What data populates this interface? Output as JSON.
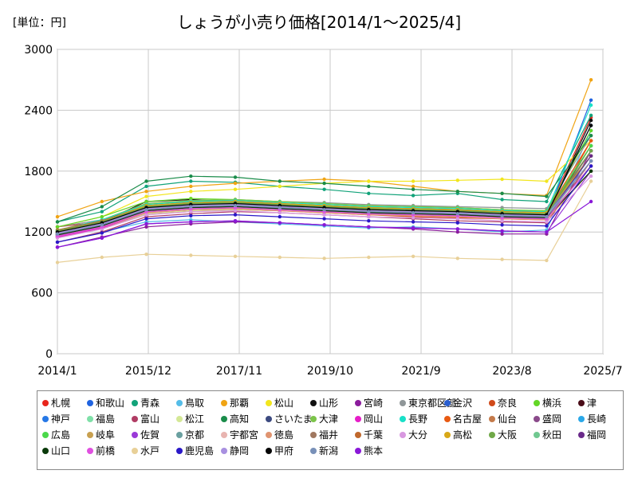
{
  "unit_label": "[単位：円]",
  "chart_title": "しょうが小売り価格[2014/1～2025/4]",
  "chart_data": {
    "type": "line",
    "title": "しょうが小売り価格[2014/1～2025/4]",
    "unit": "[単位：円]",
    "xlabel": "",
    "ylabel": "",
    "x_range": [
      "2014/1",
      "2025/7"
    ],
    "x_ticks": [
      "2014/1",
      "2015/12",
      "2017/11",
      "2019/10",
      "2021/9",
      "2023/8",
      "2025/7"
    ],
    "ylim": [
      0,
      3000
    ],
    "y_ticks": [
      0,
      600,
      1200,
      1800,
      2400,
      3000
    ],
    "grid": true,
    "legend_position": "bottom",
    "x_start": "2014/1",
    "x_end": "2025/4",
    "series": [
      {
        "name": "札幌",
        "color": "#e8251c",
        "values": [
          1250,
          1300,
          1450,
          1500,
          1520,
          1480,
          1450,
          1430,
          1400,
          1420,
          1410,
          1390,
          2330
        ]
      },
      {
        "name": "和歌山",
        "color": "#1f63e0",
        "values": [
          1150,
          1250,
          1400,
          1420,
          1450,
          1430,
          1420,
          1410,
          1380,
          1360,
          1340,
          1350,
          2500
        ]
      },
      {
        "name": "青森",
        "color": "#12a37a",
        "values": [
          1300,
          1400,
          1650,
          1700,
          1690,
          1650,
          1620,
          1580,
          1560,
          1580,
          1520,
          1500,
          2350
        ]
      },
      {
        "name": "鳥取",
        "color": "#55bde8",
        "values": [
          1100,
          1200,
          1300,
          1320,
          1300,
          1280,
          1260,
          1240,
          1250,
          1230,
          1200,
          1220,
          2200
        ]
      },
      {
        "name": "那覇",
        "color": "#f0a414",
        "values": [
          1350,
          1500,
          1600,
          1650,
          1680,
          1700,
          1720,
          1700,
          1650,
          1600,
          1580,
          1560,
          2700
        ]
      },
      {
        "name": "松山",
        "color": "#f2e61e",
        "values": [
          1250,
          1350,
          1550,
          1600,
          1620,
          1650,
          1680,
          1700,
          1700,
          1710,
          1720,
          1700,
          2100
        ]
      },
      {
        "name": "山形",
        "color": "#111111",
        "values": [
          1200,
          1300,
          1500,
          1520,
          1500,
          1480,
          1450,
          1420,
          1400,
          1380,
          1370,
          1360,
          2300
        ]
      },
      {
        "name": "宮崎",
        "color": "#8b1c9c",
        "values": [
          1050,
          1150,
          1250,
          1280,
          1300,
          1290,
          1270,
          1250,
          1230,
          1200,
          1180,
          1180,
          2000
        ]
      },
      {
        "name": "東京都区部",
        "color": "#8f9698",
        "values": [
          1250,
          1320,
          1480,
          1500,
          1510,
          1500,
          1490,
          1470,
          1460,
          1450,
          1440,
          1430,
          2150
        ]
      },
      {
        "name": "金沢",
        "color": "#2a5fd0",
        "values": [
          1200,
          1280,
          1400,
          1420,
          1440,
          1420,
          1410,
          1400,
          1390,
          1380,
          1370,
          1360,
          2250
        ]
      },
      {
        "name": "奈良",
        "color": "#d04a1a",
        "values": [
          1150,
          1230,
          1380,
          1400,
          1420,
          1410,
          1390,
          1370,
          1350,
          1340,
          1330,
          1320,
          2100
        ]
      },
      {
        "name": "横浜",
        "color": "#63d626",
        "values": [
          1250,
          1350,
          1500,
          1530,
          1520,
          1500,
          1480,
          1460,
          1450,
          1440,
          1420,
          1410,
          2200
        ]
      },
      {
        "name": "津",
        "color": "#4a0d18",
        "values": [
          1200,
          1290,
          1420,
          1450,
          1460,
          1440,
          1420,
          1400,
          1390,
          1380,
          1370,
          1360,
          2050
        ]
      },
      {
        "name": "神戸",
        "color": "#2678e6",
        "values": [
          1180,
          1260,
          1400,
          1430,
          1450,
          1430,
          1420,
          1400,
          1390,
          1370,
          1360,
          1350,
          2000
        ]
      },
      {
        "name": "福島",
        "color": "#7fe0a8",
        "values": [
          1220,
          1300,
          1450,
          1480,
          1490,
          1480,
          1460,
          1440,
          1430,
          1420,
          1410,
          1400,
          1950
        ]
      },
      {
        "name": "富山",
        "color": "#b03c64",
        "values": [
          1100,
          1200,
          1350,
          1380,
          1400,
          1390,
          1370,
          1350,
          1330,
          1310,
          1300,
          1290,
          1900
        ]
      },
      {
        "name": "松江",
        "color": "#d4e896",
        "values": [
          1150,
          1240,
          1380,
          1410,
          1420,
          1410,
          1400,
          1380,
          1370,
          1360,
          1350,
          1340,
          1850
        ]
      },
      {
        "name": "高知",
        "color": "#1a8c4a",
        "values": [
          1300,
          1450,
          1700,
          1750,
          1740,
          1700,
          1680,
          1650,
          1620,
          1600,
          1580,
          1550,
          2150
        ]
      },
      {
        "name": "さいたま",
        "color": "#3c4a80",
        "values": [
          1200,
          1300,
          1450,
          1480,
          1490,
          1470,
          1450,
          1430,
          1420,
          1410,
          1400,
          1390,
          2000
        ]
      },
      {
        "name": "大津",
        "color": "#7cc44a",
        "values": [
          1200,
          1320,
          1480,
          1510,
          1520,
          1500,
          1480,
          1460,
          1450,
          1440,
          1420,
          1400,
          2050
        ]
      },
      {
        "name": "岡山",
        "color": "#e61ec8",
        "values": [
          1150,
          1240,
          1390,
          1420,
          1430,
          1410,
          1400,
          1380,
          1370,
          1360,
          1340,
          1330,
          1950
        ]
      },
      {
        "name": "長野",
        "color": "#18e0c8",
        "values": [
          1220,
          1320,
          1470,
          1500,
          1510,
          1490,
          1470,
          1450,
          1440,
          1430,
          1410,
          1400,
          2450
        ]
      },
      {
        "name": "名古屋",
        "color": "#e85a12",
        "values": [
          1200,
          1300,
          1460,
          1490,
          1500,
          1480,
          1460,
          1440,
          1430,
          1420,
          1400,
          1390,
          2100
        ]
      },
      {
        "name": "仙台",
        "color": "#c47a4a",
        "values": [
          1180,
          1270,
          1420,
          1450,
          1460,
          1440,
          1420,
          1400,
          1390,
          1380,
          1360,
          1350,
          1900
        ]
      },
      {
        "name": "盛岡",
        "color": "#8a4a8a",
        "values": [
          1170,
          1260,
          1410,
          1440,
          1450,
          1430,
          1410,
          1390,
          1380,
          1370,
          1350,
          1340,
          2000
        ]
      },
      {
        "name": "長崎",
        "color": "#2aa8e8",
        "values": [
          1160,
          1250,
          1400,
          1430,
          1440,
          1420,
          1400,
          1380,
          1370,
          1360,
          1340,
          1330,
          1950
        ]
      },
      {
        "name": "広島",
        "color": "#4ad84a",
        "values": [
          1210,
          1300,
          1450,
          1480,
          1490,
          1470,
          1450,
          1430,
          1420,
          1410,
          1390,
          1380,
          2050
        ]
      },
      {
        "name": "岐阜",
        "color": "#c8a050",
        "values": [
          1190,
          1280,
          1430,
          1460,
          1470,
          1450,
          1430,
          1410,
          1400,
          1390,
          1370,
          1360,
          1900
        ]
      },
      {
        "name": "佐賀",
        "color": "#9a3ad8",
        "values": [
          1050,
          1140,
          1280,
          1300,
          1310,
          1290,
          1270,
          1250,
          1240,
          1230,
          1210,
          1200,
          1800
        ]
      },
      {
        "name": "京都",
        "color": "#6aa0a0",
        "values": [
          1200,
          1290,
          1440,
          1470,
          1480,
          1460,
          1440,
          1420,
          1410,
          1400,
          1380,
          1370,
          1950
        ]
      },
      {
        "name": "宇都宮",
        "color": "#e8b4b0",
        "values": [
          1170,
          1260,
          1400,
          1430,
          1440,
          1420,
          1400,
          1380,
          1370,
          1360,
          1340,
          1330,
          1850
        ]
      },
      {
        "name": "徳島",
        "color": "#e09470",
        "values": [
          1160,
          1250,
          1390,
          1420,
          1430,
          1410,
          1390,
          1370,
          1360,
          1350,
          1330,
          1320,
          1800
        ]
      },
      {
        "name": "福井",
        "color": "#a07860",
        "values": [
          1180,
          1270,
          1410,
          1440,
          1450,
          1430,
          1410,
          1390,
          1380,
          1370,
          1350,
          1340,
          1850
        ]
      },
      {
        "name": "千葉",
        "color": "#c0682c",
        "values": [
          1220,
          1310,
          1460,
          1490,
          1500,
          1480,
          1460,
          1440,
          1430,
          1420,
          1400,
          1390,
          2000
        ]
      },
      {
        "name": "大分",
        "color": "#d898e0",
        "values": [
          1140,
          1230,
          1370,
          1400,
          1410,
          1390,
          1370,
          1350,
          1340,
          1330,
          1310,
          1300,
          1750
        ]
      },
      {
        "name": "高松",
        "color": "#d8a818",
        "values": [
          1200,
          1300,
          1460,
          1490,
          1500,
          1480,
          1460,
          1440,
          1430,
          1420,
          1400,
          1390,
          1950
        ]
      },
      {
        "name": "大阪",
        "color": "#70a848",
        "values": [
          1210,
          1300,
          1450,
          1480,
          1490,
          1470,
          1450,
          1430,
          1420,
          1410,
          1390,
          1380,
          2000
        ]
      },
      {
        "name": "秋田",
        "color": "#70c890",
        "values": [
          1190,
          1280,
          1430,
          1460,
          1470,
          1450,
          1430,
          1410,
          1400,
          1390,
          1370,
          1360,
          1900
        ]
      },
      {
        "name": "福岡",
        "color": "#6a2a8a",
        "values": [
          1180,
          1270,
          1420,
          1450,
          1460,
          1440,
          1420,
          1400,
          1390,
          1380,
          1360,
          1350,
          1950
        ]
      },
      {
        "name": "山口",
        "color": "#0a3a0a",
        "values": [
          1170,
          1260,
          1410,
          1440,
          1450,
          1430,
          1410,
          1390,
          1380,
          1370,
          1350,
          1340,
          1800
        ]
      },
      {
        "name": "前橋",
        "color": "#e050e0",
        "values": [
          1160,
          1250,
          1400,
          1430,
          1440,
          1420,
          1400,
          1380,
          1370,
          1360,
          1340,
          1330,
          1850
        ]
      },
      {
        "name": "水戸",
        "color": "#e8d098",
        "values": [
          900,
          950,
          980,
          970,
          960,
          950,
          940,
          950,
          960,
          940,
          930,
          920,
          1700
        ]
      },
      {
        "name": "鹿児島",
        "color": "#2a18c8",
        "values": [
          1100,
          1190,
          1330,
          1360,
          1370,
          1350,
          1330,
          1310,
          1300,
          1290,
          1270,
          1260,
          1850
        ]
      },
      {
        "name": "静岡",
        "color": "#a890e0",
        "values": [
          1190,
          1280,
          1430,
          1460,
          1470,
          1450,
          1430,
          1410,
          1400,
          1390,
          1370,
          1360,
          1900
        ]
      },
      {
        "name": "甲府",
        "color": "#050505",
        "values": [
          1200,
          1290,
          1440,
          1470,
          1480,
          1460,
          1440,
          1420,
          1410,
          1400,
          1380,
          1370,
          2250
        ]
      },
      {
        "name": "新潟",
        "color": "#7890b8",
        "values": [
          1180,
          1270,
          1420,
          1450,
          1460,
          1440,
          1420,
          1400,
          1390,
          1380,
          1360,
          1350,
          1900
        ]
      },
      {
        "name": "熊本",
        "color": "#8a18d8",
        "values": [
          1050,
          1140,
          1280,
          1300,
          1310,
          1290,
          1270,
          1250,
          1240,
          1230,
          1210,
          1200,
          1500
        ]
      }
    ]
  }
}
